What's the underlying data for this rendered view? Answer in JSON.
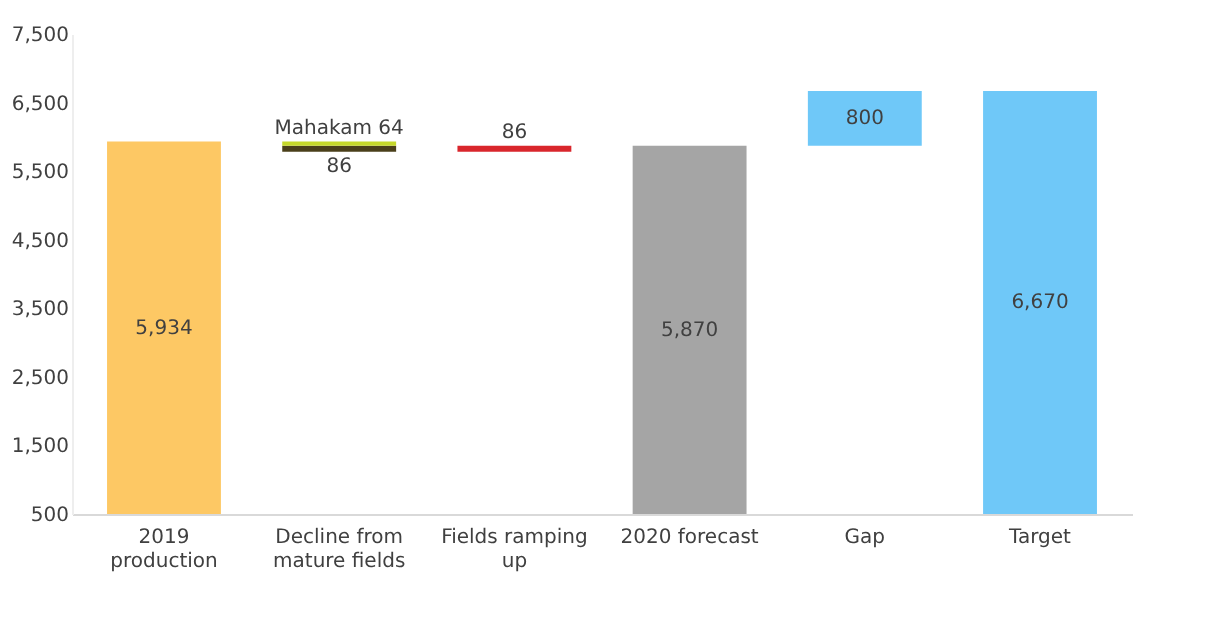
{
  "chart_data": {
    "type": "bar",
    "categories": [
      "2019 production",
      "Decline from mature fields",
      "Fields ramping up",
      "2020 forecast",
      "Gap",
      "Target"
    ],
    "series": [
      {
        "values": [
          5934,
          -86,
          86,
          5870,
          800,
          6670
        ],
        "base": [
          null,
          5870,
          5784,
          null,
          5870,
          null
        ],
        "colors": [
          "#fdc864",
          "#4a3f1a",
          "#d9262c",
          "#a5a5a5",
          "#6fc8f8",
          "#6fc8f8"
        ],
        "value_labels": [
          "5,934",
          "86",
          "86",
          "5,870",
          "800",
          "6,670"
        ]
      },
      {
        "values": [
          null,
          -64,
          null,
          null,
          null,
          null
        ],
        "base": [
          null,
          5934,
          null,
          null,
          null,
          null
        ],
        "colors": [
          null,
          "#c6d82a",
          null,
          null,
          null,
          null
        ],
        "value_labels": [
          null,
          "Mahakam 64",
          null,
          null,
          null,
          null
        ]
      }
    ],
    "ylim": [
      500,
      7500
    ],
    "yticks": [
      500,
      {
        "value": 1500,
        "label": "1,500"
      },
      {
        "value": 2500,
        "label": "2,500"
      },
      {
        "value": 3500,
        "label": "3,500"
      },
      {
        "value": 4500,
        "label": "4,500"
      },
      {
        "value": 5500,
        "label": "5,500"
      },
      {
        "value": 6500,
        "label": "6,500"
      },
      {
        "value": 7500,
        "label": "7,500"
      }
    ],
    "grid": false,
    "legend": false
  }
}
